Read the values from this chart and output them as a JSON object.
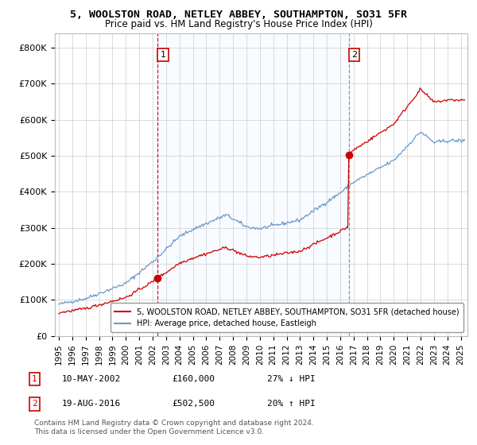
{
  "title": "5, WOOLSTON ROAD, NETLEY ABBEY, SOUTHAMPTON, SO31 5FR",
  "subtitle": "Price paid vs. HM Land Registry's House Price Index (HPI)",
  "ylabel_ticks": [
    "£0",
    "£100K",
    "£200K",
    "£300K",
    "£400K",
    "£500K",
    "£600K",
    "£700K",
    "£800K"
  ],
  "ytick_values": [
    0,
    100000,
    200000,
    300000,
    400000,
    500000,
    600000,
    700000,
    800000
  ],
  "ylim": [
    0,
    840000
  ],
  "xlim_start": 1994.7,
  "xlim_end": 2025.5,
  "sale1": {
    "year": 2002.36,
    "price": 160000,
    "label": "1",
    "date": "10-MAY-2002",
    "hpi_diff": "27% ↓ HPI"
  },
  "sale2": {
    "year": 2016.63,
    "price": 502500,
    "label": "2",
    "date": "19-AUG-2016",
    "hpi_diff": "20% ↑ HPI"
  },
  "property_line_color": "#cc0000",
  "hpi_line_color": "#6699cc",
  "sale1_vline_color": "#cc0000",
  "sale2_vline_color": "#888888",
  "shade_color": "#ddeeff",
  "legend_property": "5, WOOLSTON ROAD, NETLEY ABBEY, SOUTHAMPTON, SO31 5FR (detached house)",
  "legend_hpi": "HPI: Average price, detached house, Eastleigh",
  "footer": "Contains HM Land Registry data © Crown copyright and database right 2024.\nThis data is licensed under the Open Government Licence v3.0.",
  "annotation_box_color": "#cc0000",
  "table_row1": [
    "1",
    "10-MAY-2002",
    "£160,000",
    "27% ↓ HPI"
  ],
  "table_row2": [
    "2",
    "19-AUG-2016",
    "£502,500",
    "20% ↑ HPI"
  ]
}
